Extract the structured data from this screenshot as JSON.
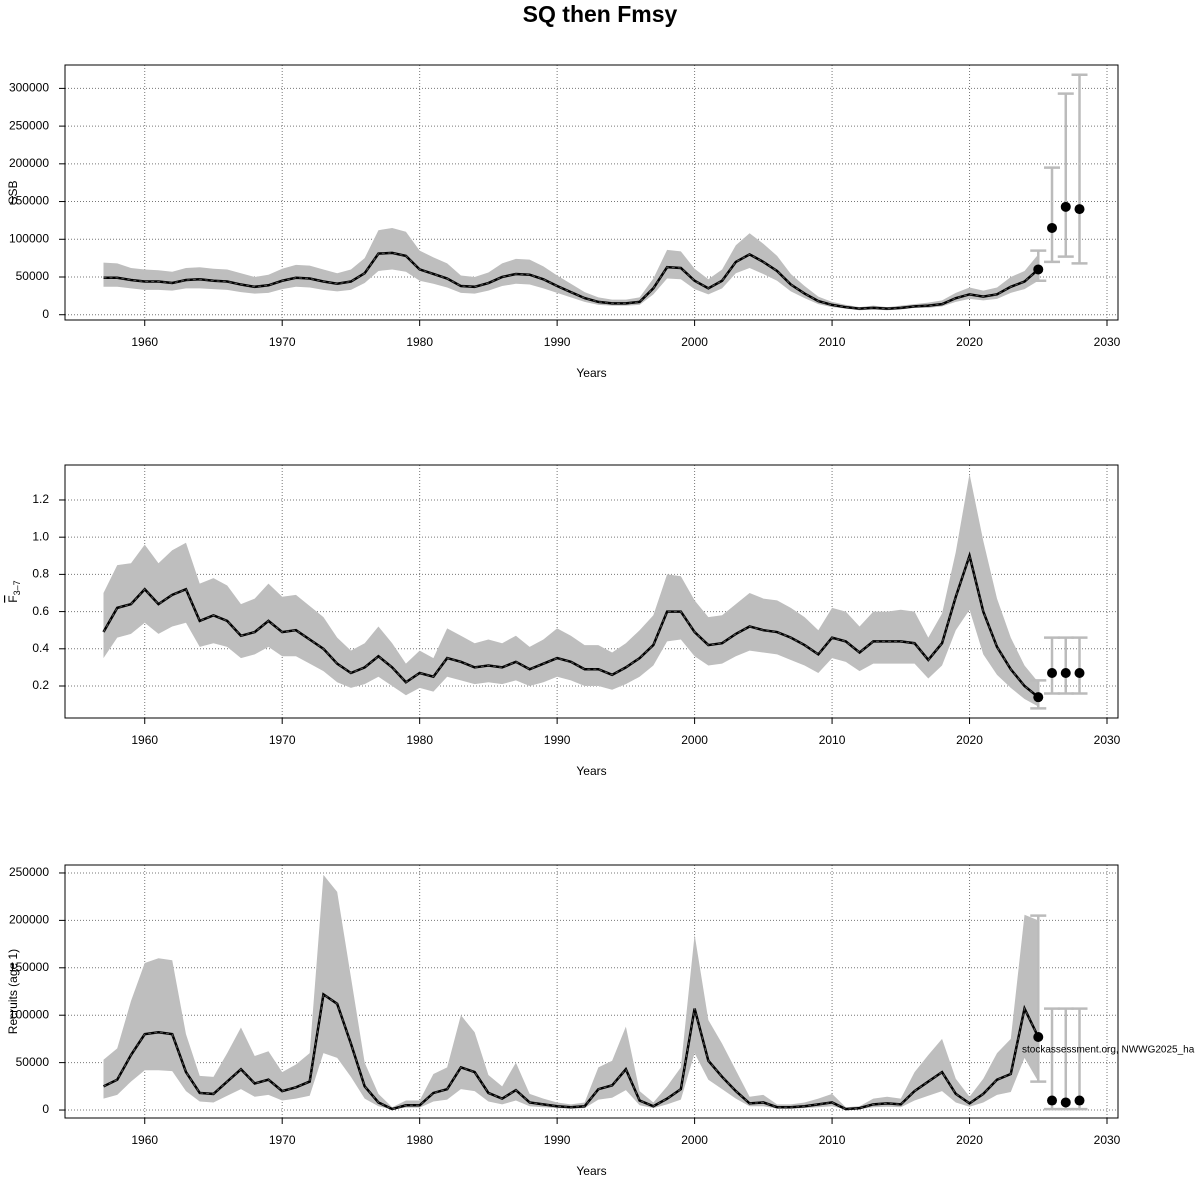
{
  "title": "SQ then Fmsy",
  "chart_data": [
    {
      "type": "line",
      "ylabel": "SSB",
      "xlabel": "Years",
      "grid": true,
      "color": "#000000",
      "band_color": "#bebebe",
      "errorbar_color": "#bbbbbb",
      "xlim": [
        1954.2,
        2030.8
      ],
      "ylim": [
        -7000,
        331000
      ],
      "xticks": [
        1960,
        1970,
        1980,
        1990,
        2000,
        2010,
        2020,
        2030
      ],
      "yticks": [
        0,
        50000,
        100000,
        150000,
        200000,
        250000,
        300000
      ],
      "x": [
        1957,
        1958,
        1959,
        1960,
        1961,
        1962,
        1963,
        1964,
        1965,
        1966,
        1967,
        1968,
        1969,
        1970,
        1971,
        1972,
        1973,
        1974,
        1975,
        1976,
        1977,
        1978,
        1979,
        1980,
        1981,
        1982,
        1983,
        1984,
        1985,
        1986,
        1987,
        1988,
        1989,
        1990,
        1991,
        1992,
        1993,
        1994,
        1995,
        1996,
        1997,
        1998,
        1999,
        2000,
        2001,
        2002,
        2003,
        2004,
        2005,
        2006,
        2007,
        2008,
        2009,
        2010,
        2011,
        2012,
        2013,
        2014,
        2015,
        2016,
        2017,
        2018,
        2019,
        2020,
        2021,
        2022,
        2023,
        2024,
        2025
      ],
      "values": [
        49000,
        49000,
        46000,
        44000,
        44000,
        42000,
        46000,
        47000,
        45000,
        44000,
        40000,
        37000,
        39000,
        45000,
        49000,
        48000,
        44000,
        41000,
        44000,
        55000,
        81000,
        82000,
        78000,
        60000,
        54000,
        48000,
        38000,
        37000,
        42000,
        50000,
        54000,
        53000,
        47000,
        38000,
        30000,
        22000,
        17000,
        15000,
        15000,
        17000,
        35000,
        63000,
        62000,
        45000,
        35000,
        45000,
        70000,
        80000,
        70000,
        58000,
        40000,
        28000,
        18000,
        13000,
        10000,
        8000,
        9000,
        8000,
        9000,
        11000,
        12000,
        14000,
        22000,
        27000,
        24000,
        27000,
        37000,
        44000,
        60000
      ],
      "low": [
        37000,
        37000,
        35000,
        33000,
        33000,
        32000,
        35000,
        35000,
        34000,
        33000,
        30000,
        28000,
        29000,
        34000,
        37000,
        36000,
        33000,
        31000,
        33000,
        42000,
        58000,
        60000,
        57000,
        45000,
        41000,
        36000,
        29000,
        28000,
        32000,
        38000,
        41000,
        40000,
        35000,
        29000,
        23000,
        17000,
        13000,
        12000,
        12000,
        13000,
        27000,
        48000,
        47000,
        34000,
        27000,
        35000,
        55000,
        62000,
        54000,
        45000,
        31000,
        22000,
        14000,
        10000,
        8000,
        6000,
        7000,
        6000,
        7000,
        9000,
        9000,
        11000,
        17000,
        21000,
        19000,
        21000,
        29000,
        34000,
        45000
      ],
      "high": [
        69000,
        68000,
        62000,
        60000,
        59000,
        57000,
        62000,
        63000,
        61000,
        60000,
        55000,
        50000,
        53000,
        61000,
        66000,
        65000,
        60000,
        55000,
        60000,
        75000,
        112000,
        115000,
        110000,
        85000,
        76000,
        68000,
        52000,
        50000,
        56000,
        68000,
        74000,
        73000,
        64000,
        52000,
        41000,
        30000,
        23000,
        20000,
        20000,
        23000,
        48000,
        86000,
        84000,
        61000,
        47000,
        60000,
        92000,
        108000,
        94000,
        78000,
        54000,
        38000,
        24000,
        17000,
        13000,
        10000,
        12000,
        10000,
        12000,
        14000,
        16000,
        19000,
        29000,
        36000,
        32000,
        36000,
        50000,
        58000,
        80000
      ],
      "forecast": {
        "x": [
          2025,
          2026,
          2027,
          2028
        ],
        "values": [
          60000,
          115000,
          143000,
          140000
        ],
        "low": [
          45000,
          70000,
          77000,
          68000
        ],
        "high": [
          85000,
          195000,
          293000,
          318000
        ]
      }
    },
    {
      "type": "line",
      "ylabel": "F",
      "ylabel_sub": "3–7",
      "xlabel": "Years",
      "grid": true,
      "color": "#000000",
      "band_color": "#bebebe",
      "errorbar_color": "#bbbbbb",
      "xlim": [
        1954.2,
        2030.8
      ],
      "ylim": [
        0.028,
        1.388
      ],
      "xticks": [
        1960,
        1970,
        1980,
        1990,
        2000,
        2010,
        2020,
        2030
      ],
      "yticks": [
        0.2,
        0.4,
        0.6,
        0.8,
        {
          "value": 1,
          "label": "1.0"
        },
        1.2
      ],
      "x": [
        1957,
        1958,
        1959,
        1960,
        1961,
        1962,
        1963,
        1964,
        1965,
        1966,
        1967,
        1968,
        1969,
        1970,
        1971,
        1972,
        1973,
        1974,
        1975,
        1976,
        1977,
        1978,
        1979,
        1980,
        1981,
        1982,
        1983,
        1984,
        1985,
        1986,
        1987,
        1988,
        1989,
        1990,
        1991,
        1992,
        1993,
        1994,
        1995,
        1996,
        1997,
        1998,
        1999,
        2000,
        2001,
        2002,
        2003,
        2004,
        2005,
        2006,
        2007,
        2008,
        2009,
        2010,
        2011,
        2012,
        2013,
        2014,
        2015,
        2016,
        2017,
        2018,
        2019,
        2020,
        2021,
        2022,
        2023,
        2024,
        2025
      ],
      "values": [
        0.49,
        0.62,
        0.64,
        0.72,
        0.64,
        0.69,
        0.72,
        0.55,
        0.58,
        0.55,
        0.47,
        0.49,
        0.55,
        0.49,
        0.5,
        0.45,
        0.4,
        0.32,
        0.27,
        0.3,
        0.36,
        0.3,
        0.22,
        0.27,
        0.25,
        0.35,
        0.33,
        0.3,
        0.31,
        0.3,
        0.33,
        0.29,
        0.32,
        0.35,
        0.33,
        0.29,
        0.29,
        0.26,
        0.3,
        0.35,
        0.42,
        0.6,
        0.6,
        0.49,
        0.42,
        0.43,
        0.48,
        0.52,
        0.5,
        0.49,
        0.46,
        0.42,
        0.37,
        0.46,
        0.44,
        0.38,
        0.44,
        0.44,
        0.44,
        0.43,
        0.34,
        0.43,
        0.68,
        0.9,
        0.6,
        0.41,
        0.29,
        0.2,
        0.14
      ],
      "low": [
        0.35,
        0.46,
        0.48,
        0.54,
        0.48,
        0.52,
        0.54,
        0.41,
        0.43,
        0.41,
        0.35,
        0.37,
        0.41,
        0.36,
        0.36,
        0.32,
        0.28,
        0.22,
        0.19,
        0.21,
        0.25,
        0.2,
        0.15,
        0.19,
        0.17,
        0.25,
        0.23,
        0.21,
        0.22,
        0.21,
        0.23,
        0.2,
        0.22,
        0.25,
        0.23,
        0.2,
        0.2,
        0.18,
        0.21,
        0.25,
        0.31,
        0.44,
        0.45,
        0.36,
        0.31,
        0.32,
        0.36,
        0.39,
        0.38,
        0.37,
        0.34,
        0.31,
        0.27,
        0.35,
        0.33,
        0.28,
        0.32,
        0.32,
        0.32,
        0.32,
        0.24,
        0.31,
        0.5,
        0.61,
        0.37,
        0.26,
        0.19,
        0.13,
        0.09
      ],
      "high": [
        0.7,
        0.85,
        0.86,
        0.96,
        0.86,
        0.93,
        0.97,
        0.75,
        0.78,
        0.74,
        0.64,
        0.67,
        0.75,
        0.68,
        0.69,
        0.63,
        0.57,
        0.46,
        0.39,
        0.43,
        0.52,
        0.43,
        0.32,
        0.39,
        0.35,
        0.51,
        0.47,
        0.43,
        0.45,
        0.43,
        0.47,
        0.41,
        0.45,
        0.51,
        0.47,
        0.42,
        0.42,
        0.38,
        0.43,
        0.5,
        0.58,
        0.8,
        0.79,
        0.66,
        0.57,
        0.58,
        0.64,
        0.7,
        0.67,
        0.66,
        0.62,
        0.57,
        0.5,
        0.62,
        0.6,
        0.52,
        0.6,
        0.6,
        0.61,
        0.6,
        0.46,
        0.59,
        0.92,
        1.34,
        0.98,
        0.67,
        0.46,
        0.31,
        0.22
      ],
      "forecast": {
        "x": [
          2025,
          2026,
          2027,
          2028
        ],
        "values": [
          0.14,
          0.27,
          0.27,
          0.27
        ],
        "low": [
          0.08,
          0.16,
          0.16,
          0.16
        ],
        "high": [
          0.23,
          0.46,
          0.46,
          0.46
        ]
      }
    },
    {
      "type": "line",
      "ylabel": "Recruits (age 1)",
      "xlabel": "Years",
      "grid": true,
      "color": "#000000",
      "band_color": "#bebebe",
      "errorbar_color": "#bbbbbb",
      "annotation": "stockassessment.org, NWWG2025_ha",
      "xlim": [
        1954.2,
        2030.8
      ],
      "ylim": [
        -8400,
        258400
      ],
      "xticks": [
        1960,
        1970,
        1980,
        1990,
        2000,
        2010,
        2020,
        2030
      ],
      "yticks": [
        0,
        50000,
        100000,
        150000,
        200000,
        250000
      ],
      "x": [
        1957,
        1958,
        1959,
        1960,
        1961,
        1962,
        1963,
        1964,
        1965,
        1966,
        1967,
        1968,
        1969,
        1970,
        1971,
        1972,
        1973,
        1974,
        1975,
        1976,
        1977,
        1978,
        1979,
        1980,
        1981,
        1982,
        1983,
        1984,
        1985,
        1986,
        1987,
        1988,
        1989,
        1990,
        1991,
        1992,
        1993,
        1994,
        1995,
        1996,
        1997,
        1998,
        1999,
        2000,
        2001,
        2002,
        2003,
        2004,
        2005,
        2006,
        2007,
        2008,
        2009,
        2010,
        2011,
        2012,
        2013,
        2014,
        2015,
        2016,
        2017,
        2018,
        2019,
        2020,
        2021,
        2022,
        2023,
        2024,
        2025
      ],
      "values": [
        25000,
        32000,
        58000,
        80000,
        82000,
        80000,
        40000,
        18000,
        17000,
        30000,
        43000,
        28000,
        32000,
        20000,
        24000,
        30000,
        122000,
        112000,
        70000,
        25000,
        8000,
        1000,
        5000,
        5000,
        18000,
        22000,
        45000,
        40000,
        18000,
        12000,
        21000,
        8000,
        6000,
        4000,
        3000,
        4000,
        22000,
        26000,
        43000,
        10000,
        4000,
        12000,
        22000,
        107000,
        52000,
        35000,
        20000,
        7000,
        8000,
        3000,
        3000,
        4000,
        6000,
        8000,
        1000,
        2000,
        6000,
        7000,
        6000,
        20000,
        30000,
        40000,
        17000,
        7000,
        17000,
        32000,
        38000,
        107000,
        77000
      ],
      "low": [
        12000,
        16000,
        30000,
        42000,
        42000,
        41000,
        20000,
        9000,
        8000,
        15000,
        22000,
        14000,
        16000,
        10000,
        12000,
        15000,
        60000,
        55000,
        35000,
        12000,
        4000,
        500,
        2500,
        2500,
        9000,
        11000,
        22000,
        20000,
        9000,
        6000,
        10000,
        4000,
        3000,
        2000,
        1500,
        2000,
        11000,
        13000,
        21000,
        5000,
        2000,
        6000,
        11000,
        60000,
        32000,
        22000,
        12000,
        4000,
        4000,
        1500,
        1500,
        2000,
        3000,
        4000,
        500,
        1000,
        3000,
        3500,
        3000,
        10000,
        15000,
        20000,
        8000,
        3500,
        8000,
        16000,
        19000,
        55000,
        30000
      ],
      "high": [
        53000,
        65000,
        115000,
        155000,
        160000,
        158000,
        80000,
        36000,
        35000,
        60000,
        87000,
        57000,
        62000,
        40000,
        48000,
        60000,
        248000,
        230000,
        140000,
        50000,
        17000,
        3000,
        10000,
        10000,
        38000,
        45000,
        100000,
        82000,
        37000,
        25000,
        50000,
        17000,
        12000,
        8000,
        6000,
        8000,
        45000,
        52000,
        88000,
        20000,
        8000,
        25000,
        45000,
        185000,
        95000,
        70000,
        42000,
        14000,
        16000,
        6000,
        6000,
        8000,
        12000,
        17000,
        3000,
        4000,
        12000,
        14000,
        12000,
        40000,
        58000,
        75000,
        33000,
        14000,
        33000,
        60000,
        75000,
        206000,
        200000
      ],
      "forecast": {
        "x": [
          2025,
          2026,
          2027,
          2028
        ],
        "values": [
          77000,
          10000,
          8000,
          10000
        ],
        "low": [
          30000,
          1000,
          1000,
          1000
        ],
        "high": [
          205000,
          107000,
          107000,
          107000
        ]
      }
    }
  ]
}
